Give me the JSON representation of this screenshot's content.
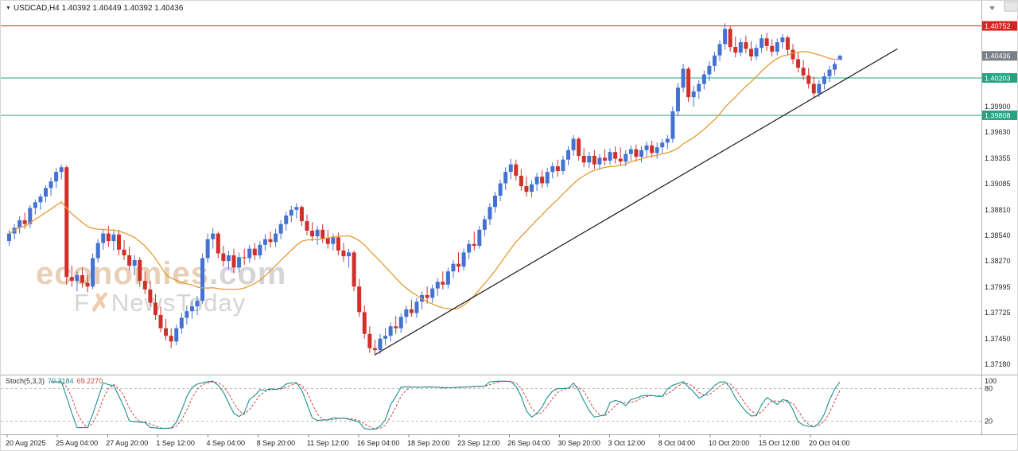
{
  "header": {
    "dropdown_icon": "▼",
    "ohlc_text": "USDCAD,H4 1.40392 1.40449 1.40392 1.40436"
  },
  "watermark": {
    "brand": "economies",
    "brand_suffix": ".com",
    "tagline_pre": "F",
    "tagline_x": "✗",
    "tagline_post": "NewsToday"
  },
  "indicator": {
    "name": "Stoch(5,3,3)",
    "k_value": "70.3184",
    "d_value": "69.2270"
  },
  "colors": {
    "bull": "#4472d0",
    "bear": "#d0302a",
    "background": "#ffffff",
    "axis_line": "#b0b0b0",
    "axis_text": "#1f1f1f"
  },
  "chart_data": {
    "type": "candlestick",
    "symbol": "USDCAD",
    "timeframe": "H4",
    "current_bar": {
      "open": 1.40392,
      "high": 1.40449,
      "low": 1.40392,
      "close": 1.40436
    },
    "price_axis": {
      "min": 1.3707,
      "max": 1.4095,
      "tick_labels": [
        "1.39900",
        "1.39630",
        "1.39355",
        "1.39085",
        "1.38810",
        "1.38540",
        "1.38270",
        "1.37995",
        "1.37725",
        "1.37450",
        "1.37180"
      ]
    },
    "time_labels": [
      "20 Aug 2025",
      "25 Aug 04:00",
      "27 Aug 20:00",
      "1 Sep 12:00",
      "4 Sep 04:00",
      "8 Sep 20:00",
      "11 Sep 12:00",
      "16 Sep 04:00",
      "18 Sep 20:00",
      "23 Sep 12:00",
      "26 Sep 04:00",
      "30 Sep 20:00",
      "3 Oct 12:00",
      "8 Oct 04:00",
      "10 Oct 20:00",
      "15 Oct 12:00",
      "20 Oct 04:00"
    ],
    "candles_ohlc": [
      [
        1.3848,
        1.386,
        1.3843,
        1.3856
      ],
      [
        1.3856,
        1.3866,
        1.385,
        1.3862
      ],
      [
        1.3862,
        1.3874,
        1.3856,
        1.387
      ],
      [
        1.387,
        1.3878,
        1.3861,
        1.3866
      ],
      [
        1.3866,
        1.3886,
        1.3862,
        1.3883
      ],
      [
        1.3883,
        1.3892,
        1.3876,
        1.3889
      ],
      [
        1.3889,
        1.3898,
        1.3881,
        1.3895
      ],
      [
        1.3895,
        1.3907,
        1.3889,
        1.3904
      ],
      [
        1.3904,
        1.3915,
        1.3896,
        1.3911
      ],
      [
        1.3911,
        1.3925,
        1.3904,
        1.3921
      ],
      [
        1.3921,
        1.3929,
        1.3913,
        1.3926
      ],
      [
        1.3926,
        1.3928,
        1.3802,
        1.381
      ],
      [
        1.381,
        1.3822,
        1.38,
        1.3806
      ],
      [
        1.3806,
        1.3816,
        1.3795,
        1.3812
      ],
      [
        1.3812,
        1.382,
        1.3799,
        1.3804
      ],
      [
        1.3804,
        1.3812,
        1.3794,
        1.38
      ],
      [
        1.38,
        1.3835,
        1.3797,
        1.383
      ],
      [
        1.383,
        1.385,
        1.3825,
        1.3846
      ],
      [
        1.3846,
        1.3861,
        1.3839,
        1.3856
      ],
      [
        1.3856,
        1.3864,
        1.3842,
        1.3848
      ],
      [
        1.3848,
        1.3859,
        1.3838,
        1.3855
      ],
      [
        1.3855,
        1.386,
        1.3833,
        1.3839
      ],
      [
        1.3839,
        1.3849,
        1.3828,
        1.3833
      ],
      [
        1.3833,
        1.3842,
        1.3817,
        1.3822
      ],
      [
        1.3822,
        1.3833,
        1.3812,
        1.3828
      ],
      [
        1.3828,
        1.3831,
        1.38,
        1.3806
      ],
      [
        1.3806,
        1.3816,
        1.3792,
        1.3797
      ],
      [
        1.3797,
        1.3806,
        1.3779,
        1.3783
      ],
      [
        1.3783,
        1.3792,
        1.3765,
        1.377
      ],
      [
        1.377,
        1.3779,
        1.3752,
        1.3756
      ],
      [
        1.3756,
        1.3766,
        1.3743,
        1.3748
      ],
      [
        1.3748,
        1.3756,
        1.3735,
        1.3742
      ],
      [
        1.3742,
        1.376,
        1.3738,
        1.3756
      ],
      [
        1.3756,
        1.3772,
        1.375,
        1.3767
      ],
      [
        1.3767,
        1.378,
        1.376,
        1.3774
      ],
      [
        1.3774,
        1.3785,
        1.3766,
        1.3779
      ],
      [
        1.3779,
        1.379,
        1.377,
        1.3785
      ],
      [
        1.3785,
        1.3835,
        1.3782,
        1.383
      ],
      [
        1.383,
        1.3856,
        1.3825,
        1.385
      ],
      [
        1.385,
        1.3862,
        1.384,
        1.3856
      ],
      [
        1.3856,
        1.3858,
        1.383,
        1.3835
      ],
      [
        1.3835,
        1.3843,
        1.3821,
        1.3827
      ],
      [
        1.3827,
        1.3838,
        1.3818,
        1.3833
      ],
      [
        1.3833,
        1.384,
        1.3814,
        1.382
      ],
      [
        1.382,
        1.3836,
        1.3815,
        1.3831
      ],
      [
        1.3831,
        1.384,
        1.3823,
        1.383
      ],
      [
        1.383,
        1.3844,
        1.3825,
        1.384
      ],
      [
        1.384,
        1.3846,
        1.3828,
        1.3833
      ],
      [
        1.3833,
        1.3848,
        1.3829,
        1.3844
      ],
      [
        1.3844,
        1.3855,
        1.3838,
        1.385
      ],
      [
        1.385,
        1.3858,
        1.3841,
        1.3847
      ],
      [
        1.3847,
        1.3861,
        1.3842,
        1.3856
      ],
      [
        1.3856,
        1.387,
        1.385,
        1.3866
      ],
      [
        1.3866,
        1.3879,
        1.3859,
        1.3875
      ],
      [
        1.3875,
        1.3885,
        1.3868,
        1.3881
      ],
      [
        1.3881,
        1.3888,
        1.3872,
        1.3884
      ],
      [
        1.3884,
        1.3886,
        1.3864,
        1.3869
      ],
      [
        1.3869,
        1.3876,
        1.3854,
        1.3859
      ],
      [
        1.3859,
        1.3868,
        1.3848,
        1.3853
      ],
      [
        1.3853,
        1.3864,
        1.3844,
        1.386
      ],
      [
        1.386,
        1.3866,
        1.3846,
        1.3851
      ],
      [
        1.3851,
        1.386,
        1.384,
        1.3845
      ],
      [
        1.3845,
        1.3856,
        1.3838,
        1.3852
      ],
      [
        1.3852,
        1.3857,
        1.3833,
        1.3838
      ],
      [
        1.3838,
        1.3846,
        1.3826,
        1.3832
      ],
      [
        1.3832,
        1.384,
        1.382,
        1.3836
      ],
      [
        1.3836,
        1.3838,
        1.3795,
        1.38
      ],
      [
        1.38,
        1.3808,
        1.3768,
        1.3773
      ],
      [
        1.3773,
        1.378,
        1.3745,
        1.375
      ],
      [
        1.375,
        1.3758,
        1.373,
        1.3735
      ],
      [
        1.3735,
        1.3744,
        1.3727,
        1.3733
      ],
      [
        1.3733,
        1.375,
        1.3729,
        1.3745
      ],
      [
        1.3745,
        1.3756,
        1.3738,
        1.3748
      ],
      [
        1.3748,
        1.3762,
        1.3742,
        1.3758
      ],
      [
        1.3758,
        1.3769,
        1.375,
        1.3756
      ],
      [
        1.3756,
        1.3772,
        1.3751,
        1.3768
      ],
      [
        1.3768,
        1.378,
        1.3761,
        1.3776
      ],
      [
        1.3776,
        1.3786,
        1.3768,
        1.3772
      ],
      [
        1.3772,
        1.3788,
        1.3767,
        1.3784
      ],
      [
        1.3784,
        1.3795,
        1.3776,
        1.3791
      ],
      [
        1.3791,
        1.38,
        1.3782,
        1.3788
      ],
      [
        1.3788,
        1.3802,
        1.3783,
        1.3798
      ],
      [
        1.3798,
        1.3809,
        1.379,
        1.3805
      ],
      [
        1.3805,
        1.3816,
        1.3797,
        1.3802
      ],
      [
        1.3802,
        1.382,
        1.3798,
        1.3816
      ],
      [
        1.3816,
        1.3828,
        1.3809,
        1.3824
      ],
      [
        1.3824,
        1.3836,
        1.3815,
        1.3821
      ],
      [
        1.3821,
        1.384,
        1.3817,
        1.3836
      ],
      [
        1.3836,
        1.3849,
        1.3829,
        1.3845
      ],
      [
        1.3845,
        1.3858,
        1.3838,
        1.3843
      ],
      [
        1.3843,
        1.3864,
        1.384,
        1.386
      ],
      [
        1.386,
        1.3875,
        1.3853,
        1.3871
      ],
      [
        1.3871,
        1.3888,
        1.3865,
        1.3884
      ],
      [
        1.3884,
        1.39,
        1.3878,
        1.3896
      ],
      [
        1.3896,
        1.3913,
        1.389,
        1.3909
      ],
      [
        1.3909,
        1.3926,
        1.3902,
        1.3921
      ],
      [
        1.3921,
        1.3935,
        1.3913,
        1.3929
      ],
      [
        1.3929,
        1.3934,
        1.3912,
        1.3917
      ],
      [
        1.3917,
        1.3924,
        1.3901,
        1.3906
      ],
      [
        1.3906,
        1.3916,
        1.3895,
        1.39
      ],
      [
        1.39,
        1.3912,
        1.3894,
        1.3908
      ],
      [
        1.3908,
        1.392,
        1.3901,
        1.3916
      ],
      [
        1.3916,
        1.3923,
        1.3904,
        1.3909
      ],
      [
        1.3909,
        1.3925,
        1.3905,
        1.3921
      ],
      [
        1.3921,
        1.3931,
        1.3914,
        1.3927
      ],
      [
        1.3927,
        1.3934,
        1.3916,
        1.3922
      ],
      [
        1.3922,
        1.3938,
        1.3918,
        1.3934
      ],
      [
        1.3934,
        1.3948,
        1.3928,
        1.3944
      ],
      [
        1.3944,
        1.396,
        1.3938,
        1.3956
      ],
      [
        1.3956,
        1.3958,
        1.3933,
        1.3938
      ],
      [
        1.3938,
        1.3946,
        1.3926,
        1.3931
      ],
      [
        1.3931,
        1.3942,
        1.3925,
        1.3938
      ],
      [
        1.3938,
        1.3944,
        1.3924,
        1.3929
      ],
      [
        1.3929,
        1.394,
        1.3923,
        1.3936
      ],
      [
        1.3936,
        1.3945,
        1.3928,
        1.3933
      ],
      [
        1.3933,
        1.3946,
        1.3929,
        1.3942
      ],
      [
        1.3942,
        1.3948,
        1.393,
        1.3935
      ],
      [
        1.3935,
        1.3947,
        1.3928,
        1.3932
      ],
      [
        1.3932,
        1.3944,
        1.3927,
        1.394
      ],
      [
        1.394,
        1.3949,
        1.3933,
        1.3945
      ],
      [
        1.3945,
        1.395,
        1.3932,
        1.3937
      ],
      [
        1.3937,
        1.3948,
        1.3931,
        1.3944
      ],
      [
        1.3944,
        1.3953,
        1.3937,
        1.3949
      ],
      [
        1.3949,
        1.3954,
        1.3936,
        1.3941
      ],
      [
        1.3941,
        1.3952,
        1.3935,
        1.3947
      ],
      [
        1.3947,
        1.3956,
        1.394,
        1.3952
      ],
      [
        1.3952,
        1.396,
        1.3945,
        1.3956
      ],
      [
        1.3956,
        1.399,
        1.3952,
        1.3985
      ],
      [
        1.3985,
        1.4015,
        1.398,
        1.401
      ],
      [
        1.401,
        1.4035,
        1.4005,
        1.403
      ],
      [
        1.403,
        1.4032,
        1.3995,
        1.4
      ],
      [
        1.4,
        1.4012,
        1.399,
        1.4006
      ],
      [
        1.4006,
        1.4018,
        1.3998,
        1.4014
      ],
      [
        1.4014,
        1.4028,
        1.4008,
        1.4024
      ],
      [
        1.4024,
        1.4038,
        1.4017,
        1.4033
      ],
      [
        1.4033,
        1.4048,
        1.4027,
        1.4044
      ],
      [
        1.4044,
        1.406,
        1.4038,
        1.4056
      ],
      [
        1.4056,
        1.4078,
        1.405,
        1.4072
      ],
      [
        1.4072,
        1.4075,
        1.4048,
        1.4053
      ],
      [
        1.4053,
        1.4064,
        1.4042,
        1.4047
      ],
      [
        1.4047,
        1.4062,
        1.4043,
        1.4058
      ],
      [
        1.4058,
        1.4065,
        1.4046,
        1.4051
      ],
      [
        1.4051,
        1.4059,
        1.4038,
        1.4043
      ],
      [
        1.4043,
        1.4056,
        1.4039,
        1.4052
      ],
      [
        1.4052,
        1.4066,
        1.4047,
        1.4062
      ],
      [
        1.4062,
        1.4068,
        1.4049,
        1.4054
      ],
      [
        1.4054,
        1.4061,
        1.4043,
        1.4048
      ],
      [
        1.4048,
        1.4062,
        1.4044,
        1.4058
      ],
      [
        1.4058,
        1.4067,
        1.4051,
        1.4063
      ],
      [
        1.4063,
        1.4065,
        1.4045,
        1.405
      ],
      [
        1.405,
        1.4056,
        1.4035,
        1.404
      ],
      [
        1.404,
        1.4047,
        1.4026,
        1.4031
      ],
      [
        1.4031,
        1.4039,
        1.4018,
        1.4023
      ],
      [
        1.4023,
        1.4031,
        1.4009,
        1.4014
      ],
      [
        1.4014,
        1.4022,
        1.3999,
        1.4004
      ],
      [
        1.4004,
        1.4018,
        1.4,
        1.4014
      ],
      [
        1.4014,
        1.4026,
        1.4008,
        1.4022
      ],
      [
        1.4022,
        1.4033,
        1.4016,
        1.4029
      ],
      [
        1.4029,
        1.4038,
        1.4023,
        1.4035
      ],
      [
        1.40392,
        1.40449,
        1.40392,
        1.40436
      ]
    ],
    "overlays": {
      "horizontal_lines": [
        {
          "price": 1.40752,
          "label": "1.40752",
          "color": "#d02820",
          "type": "resistance"
        },
        {
          "price": 1.40203,
          "label": "1.40203",
          "color": "#2aa182",
          "type": "support"
        },
        {
          "price": 1.39808,
          "label": "1.39808",
          "color": "#2aa182",
          "type": "support"
        }
      ],
      "current_price_label": {
        "price": 1.40436,
        "label": "1.40436",
        "bg": "#7a7f87"
      },
      "moving_average": {
        "kind": "sma",
        "period": 20,
        "color": "#e59b33"
      },
      "trendline": {
        "color": "#161616",
        "start_index": 70,
        "start_price": 1.3728,
        "end_index": 170,
        "end_price": 1.4051
      }
    },
    "stochastic": {
      "name": "Stoch(5,3,3)",
      "params": [
        5,
        3,
        3
      ],
      "k": 70.3184,
      "d": 69.227,
      "range": [
        0,
        100
      ],
      "levels": [
        80,
        20
      ],
      "axis_labels": [
        "100",
        "80",
        "20"
      ],
      "k_color": "#1c8f8f",
      "d_color": "#d04545"
    }
  }
}
